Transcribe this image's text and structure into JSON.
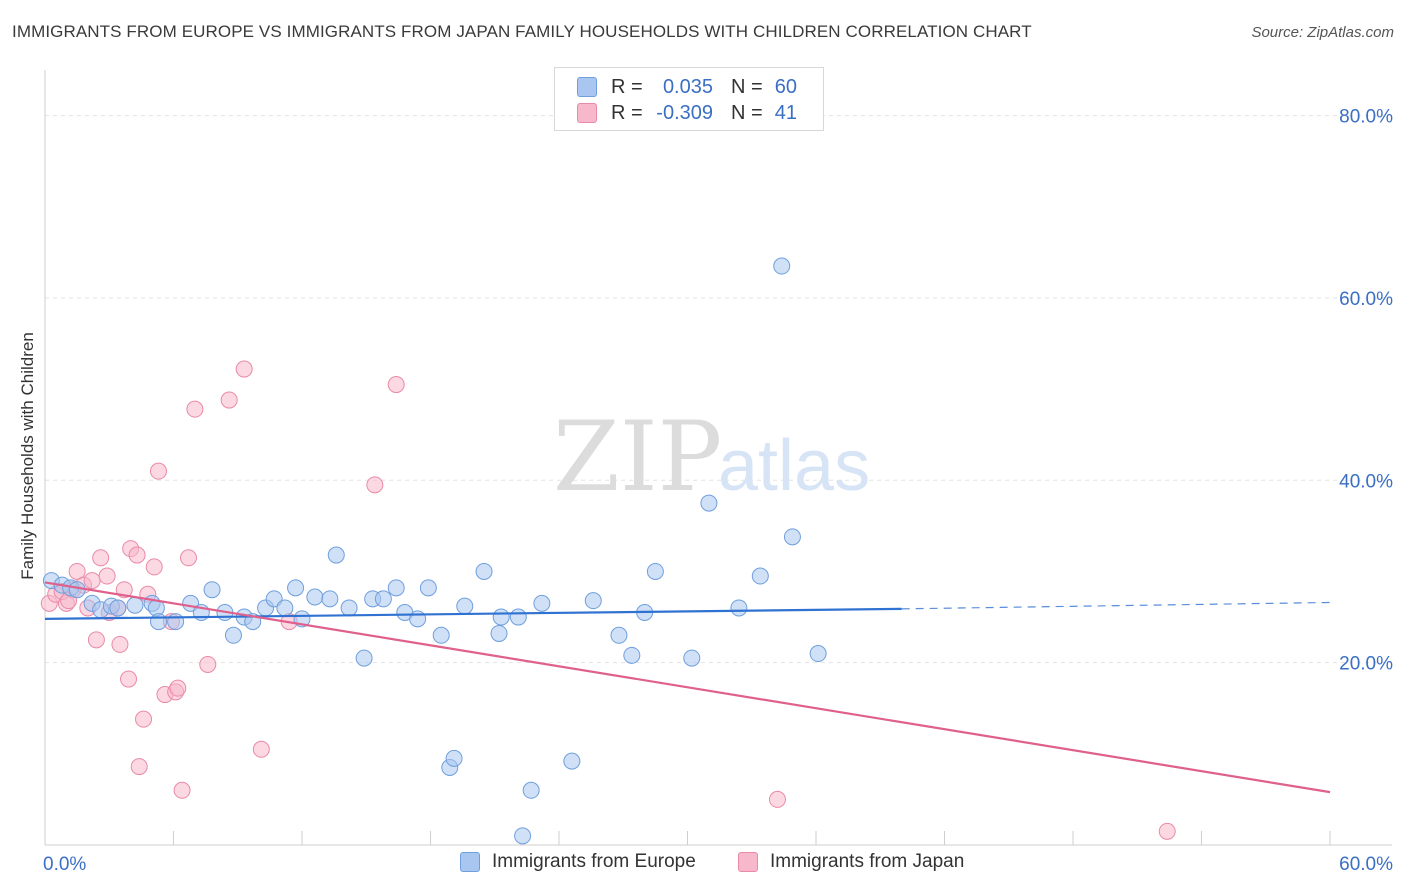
{
  "header": {
    "title": "IMMIGRANTS FROM EUROPE VS IMMIGRANTS FROM JAPAN FAMILY HOUSEHOLDS WITH CHILDREN CORRELATION CHART",
    "source": "Source: ZipAtlas.com"
  },
  "watermark": {
    "zip": "ZIP",
    "atlas": "atlas"
  },
  "legend": {
    "rows": [
      {
        "r_label": "R =",
        "r_value": "0.035",
        "n_label": "N =",
        "n_value": "60",
        "color": "#a8c6f0",
        "border": "#6f9fdc"
      },
      {
        "r_label": "R =",
        "r_value": "-0.309",
        "n_label": "N =",
        "n_value": "41",
        "color": "#f7b8cb",
        "border": "#e98aa8"
      }
    ]
  },
  "bottom_legend": [
    {
      "label": "Immigrants from Europe",
      "color": "#a8c6f0",
      "border": "#6f9fdc"
    },
    {
      "label": "Immigrants from Japan",
      "color": "#f7b8cb",
      "border": "#e98aa8"
    }
  ],
  "chart_data": {
    "type": "scatter",
    "title": "IMMIGRANTS FROM EUROPE VS IMMIGRANTS FROM JAPAN FAMILY HOUSEHOLDS WITH CHILDREN CORRELATION CHART",
    "xlabel": "",
    "ylabel": "Family Households with Children",
    "xlim": [
      0,
      60
    ],
    "ylim": [
      0,
      85
    ],
    "x_tick_labels": [
      {
        "value": 0,
        "label": "0.0%"
      },
      {
        "value": 60,
        "label": "60.0%"
      }
    ],
    "y_tick_labels": [
      {
        "value": 20,
        "label": "20.0%"
      },
      {
        "value": 40,
        "label": "40.0%"
      },
      {
        "value": 60,
        "label": "60.0%"
      },
      {
        "value": 80,
        "label": "80.0%"
      }
    ],
    "series": [
      {
        "name": "Immigrants from Europe",
        "color": "#a8c6f0",
        "stroke": "#6f9fdc",
        "points": [
          [
            0.3,
            29.0
          ],
          [
            0.8,
            28.5
          ],
          [
            1.2,
            28.2
          ],
          [
            1.5,
            28.0
          ],
          [
            2.2,
            26.5
          ],
          [
            2.6,
            25.8
          ],
          [
            3.1,
            26.2
          ],
          [
            3.4,
            26.0
          ],
          [
            4.2,
            26.3
          ],
          [
            5.0,
            26.5
          ],
          [
            5.2,
            26.0
          ],
          [
            5.3,
            24.5
          ],
          [
            6.1,
            24.5
          ],
          [
            6.8,
            26.5
          ],
          [
            7.3,
            25.5
          ],
          [
            7.8,
            28.0
          ],
          [
            8.4,
            25.5
          ],
          [
            8.8,
            23.0
          ],
          [
            9.3,
            25.0
          ],
          [
            9.7,
            24.5
          ],
          [
            10.3,
            26.0
          ],
          [
            10.7,
            27.0
          ],
          [
            11.2,
            26.0
          ],
          [
            11.7,
            28.2
          ],
          [
            12.0,
            24.8
          ],
          [
            12.6,
            27.2
          ],
          [
            13.3,
            27.0
          ],
          [
            13.6,
            31.8
          ],
          [
            14.2,
            26.0
          ],
          [
            14.9,
            20.5
          ],
          [
            15.3,
            27.0
          ],
          [
            15.8,
            27.0
          ],
          [
            16.4,
            28.2
          ],
          [
            16.8,
            25.5
          ],
          [
            17.4,
            24.8
          ],
          [
            17.9,
            28.2
          ],
          [
            18.5,
            23.0
          ],
          [
            18.9,
            8.5
          ],
          [
            19.1,
            9.5
          ],
          [
            19.6,
            26.2
          ],
          [
            20.5,
            30.0
          ],
          [
            21.2,
            23.2
          ],
          [
            21.3,
            25.0
          ],
          [
            22.1,
            25.0
          ],
          [
            22.7,
            6.0
          ],
          [
            22.3,
            1.0
          ],
          [
            23.2,
            26.5
          ],
          [
            24.6,
            9.2
          ],
          [
            25.6,
            26.8
          ],
          [
            26.8,
            23.0
          ],
          [
            27.4,
            20.8
          ],
          [
            28.0,
            25.5
          ],
          [
            28.5,
            30.0
          ],
          [
            30.2,
            20.5
          ],
          [
            31.0,
            37.5
          ],
          [
            32.4,
            26.0
          ],
          [
            33.4,
            29.5
          ],
          [
            34.4,
            63.5
          ],
          [
            34.9,
            33.8
          ],
          [
            36.1,
            21.0
          ]
        ]
      },
      {
        "name": "Immigrants from Japan",
        "color": "#f7b8cb",
        "stroke": "#e98aa8",
        "points": [
          [
            0.2,
            26.5
          ],
          [
            0.5,
            27.5
          ],
          [
            1.0,
            26.5
          ],
          [
            1.3,
            28.0
          ],
          [
            1.5,
            30.0
          ],
          [
            1.8,
            28.5
          ],
          [
            2.0,
            26.0
          ],
          [
            2.2,
            29.0
          ],
          [
            2.4,
            22.5
          ],
          [
            2.6,
            31.5
          ],
          [
            2.9,
            29.5
          ],
          [
            3.0,
            25.5
          ],
          [
            3.4,
            26.0
          ],
          [
            3.5,
            22.0
          ],
          [
            3.7,
            28.0
          ],
          [
            3.9,
            18.2
          ],
          [
            4.0,
            32.5
          ],
          [
            4.3,
            31.8
          ],
          [
            4.4,
            8.6
          ],
          [
            4.6,
            13.8
          ],
          [
            4.8,
            27.5
          ],
          [
            5.1,
            30.5
          ],
          [
            5.3,
            41.0
          ],
          [
            5.6,
            16.5
          ],
          [
            5.9,
            24.5
          ],
          [
            6.1,
            16.8
          ],
          [
            6.2,
            17.2
          ],
          [
            6.4,
            6.0
          ],
          [
            6.7,
            31.5
          ],
          [
            7.0,
            47.8
          ],
          [
            7.6,
            19.8
          ],
          [
            8.6,
            48.8
          ],
          [
            9.3,
            52.2
          ],
          [
            10.1,
            10.5
          ],
          [
            11.4,
            24.5
          ],
          [
            15.4,
            39.5
          ],
          [
            16.4,
            50.5
          ],
          [
            34.2,
            5.0
          ],
          [
            52.4,
            1.5
          ],
          [
            0.8,
            27.8
          ],
          [
            1.1,
            26.8
          ]
        ]
      }
    ],
    "trendlines": [
      {
        "series": "Immigrants from Europe",
        "x_start": 0,
        "y_start": 24.8,
        "x_end": 40,
        "y_end": 25.9,
        "dashed_to_x": 60,
        "dashed_y_end": 26.6,
        "color": "#2f72d1"
      },
      {
        "series": "Immigrants from Japan",
        "x_start": 0,
        "y_start": 28.8,
        "x_end": 60,
        "y_end": 5.8,
        "color": "#e0608c"
      }
    ]
  }
}
